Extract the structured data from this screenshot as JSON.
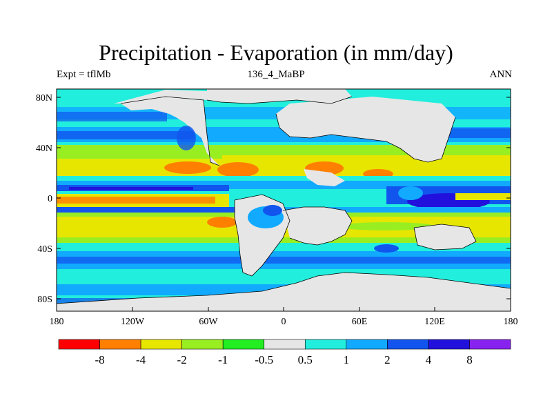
{
  "title": "Precipitation - Evaporation (in mm/day)",
  "subtitle_left": "Expt = tflMb",
  "subtitle_center": "136_4_MaBP",
  "subtitle_right": "ANN",
  "lat_labels": [
    "80N",
    "40N",
    "0",
    "40S",
    "80S"
  ],
  "lon_labels": [
    "180",
    "120W",
    "60W",
    "0",
    "60E",
    "120E",
    "180"
  ],
  "colorbar": {
    "colors": [
      "#ff0000",
      "#ff8000",
      "#e6e600",
      "#99ee22",
      "#22ee22",
      "#e6e6e6",
      "#22eedd",
      "#11aaff",
      "#1155ee",
      "#2211dd",
      "#8822ee"
    ],
    "labels": [
      "-8",
      "-4",
      "-2",
      "-1",
      "-0.5",
      "0.5",
      "1",
      "2",
      "4",
      "8"
    ]
  }
}
